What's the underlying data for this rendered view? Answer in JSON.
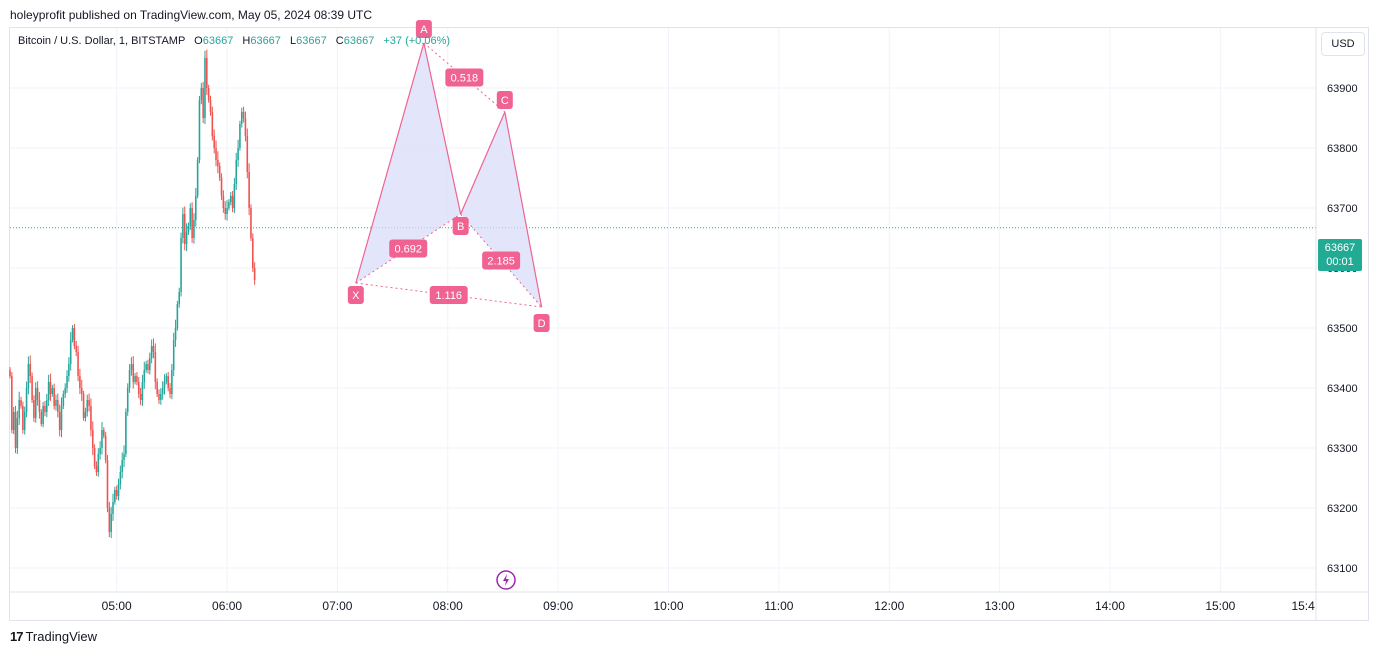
{
  "header": {
    "published": "holeyprofit published on TradingView.com, May 05, 2024 08:39 UTC"
  },
  "legend": {
    "symbol": "Bitcoin / U.S. Dollar, 1, BITSTAMP",
    "o_label": "O",
    "o_value": "63667",
    "h_label": "H",
    "h_value": "63667",
    "l_label": "L",
    "l_value": "63667",
    "c_label": "C",
    "c_value": "63667",
    "change": "+37 (+0.06%)"
  },
  "currency": "USD",
  "price_tag": {
    "price": "63667",
    "countdown": "00:01"
  },
  "footer": {
    "brand": "TradingView",
    "logo_mark": "17"
  },
  "colors": {
    "up": "#26a69a",
    "down": "#ef5350",
    "pattern": "#f06292",
    "pattern_fill": "#d7dcfa",
    "last_price": "#22ab94"
  },
  "chart_data": {
    "type": "candlestick",
    "symbol": "BTCUSD",
    "interval": "1",
    "ylim": [
      63060,
      64000
    ],
    "y_ticks": [
      63100,
      63200,
      63300,
      63400,
      63500,
      63600,
      63700,
      63800,
      63900
    ],
    "x_ticks": [
      "05:00",
      "06:00",
      "07:00",
      "08:00",
      "09:00",
      "10:00",
      "11:00",
      "12:00",
      "13:00",
      "14:00",
      "15:00",
      "15:4"
    ],
    "x_tick_minutes": [
      300,
      360,
      420,
      480,
      540,
      600,
      660,
      720,
      780,
      840,
      900,
      945
    ],
    "xlim_minutes": [
      242,
      952
    ],
    "last_price": 63667,
    "close_series": {
      "start_minute": 242,
      "closes": [
        63420,
        63330,
        63360,
        63300,
        63350,
        63380,
        63370,
        63330,
        63360,
        63400,
        63440,
        63420,
        63380,
        63350,
        63400,
        63380,
        63360,
        63340,
        63370,
        63360,
        63380,
        63410,
        63390,
        63400,
        63370,
        63380,
        63360,
        63330,
        63370,
        63390,
        63400,
        63420,
        63440,
        63480,
        63500,
        63470,
        63460,
        63420,
        63400,
        63390,
        63350,
        63360,
        63380,
        63370,
        63330,
        63300,
        63270,
        63260,
        63290,
        63300,
        63330,
        63320,
        63280,
        63200,
        63160,
        63190,
        63210,
        63230,
        63220,
        63240,
        63260,
        63280,
        63290,
        63360,
        63400,
        63430,
        63440,
        63410,
        63420,
        63410,
        63390,
        63380,
        63410,
        63430,
        63440,
        63430,
        63450,
        63470,
        63460,
        63410,
        63390,
        63380,
        63390,
        63400,
        63410,
        63420,
        63400,
        63390,
        63430,
        63480,
        63500,
        63540,
        63560,
        63650,
        63690,
        63640,
        63660,
        63670,
        63700,
        63650,
        63680,
        63720,
        63780,
        63880,
        63900,
        63850,
        63950,
        63900,
        63880,
        63860,
        63820,
        63800,
        63780,
        63770,
        63750,
        63720,
        63700,
        63690,
        63700,
        63710,
        63720,
        63700,
        63740,
        63780,
        63800,
        63840,
        63860,
        63850,
        63820,
        63760,
        63700,
        63650,
        63600,
        63580
      ]
    },
    "pattern": {
      "name": "XABCD",
      "points": [
        {
          "label": "X",
          "minute": 430,
          "price": 63575
        },
        {
          "label": "A",
          "minute": 467,
          "price": 63975
        },
        {
          "label": "B",
          "minute": 487,
          "price": 63690
        },
        {
          "label": "C",
          "minute": 511,
          "price": 63860
        },
        {
          "label": "D",
          "minute": 531,
          "price": 63535
        }
      ],
      "ratios": [
        {
          "value": "0.692",
          "from": "X",
          "to": "B"
        },
        {
          "value": "0.518",
          "from": "A",
          "to": "C"
        },
        {
          "value": "2.185",
          "from": "B",
          "to": "D"
        },
        {
          "value": "1.116",
          "from": "X",
          "to": "D"
        }
      ]
    }
  }
}
